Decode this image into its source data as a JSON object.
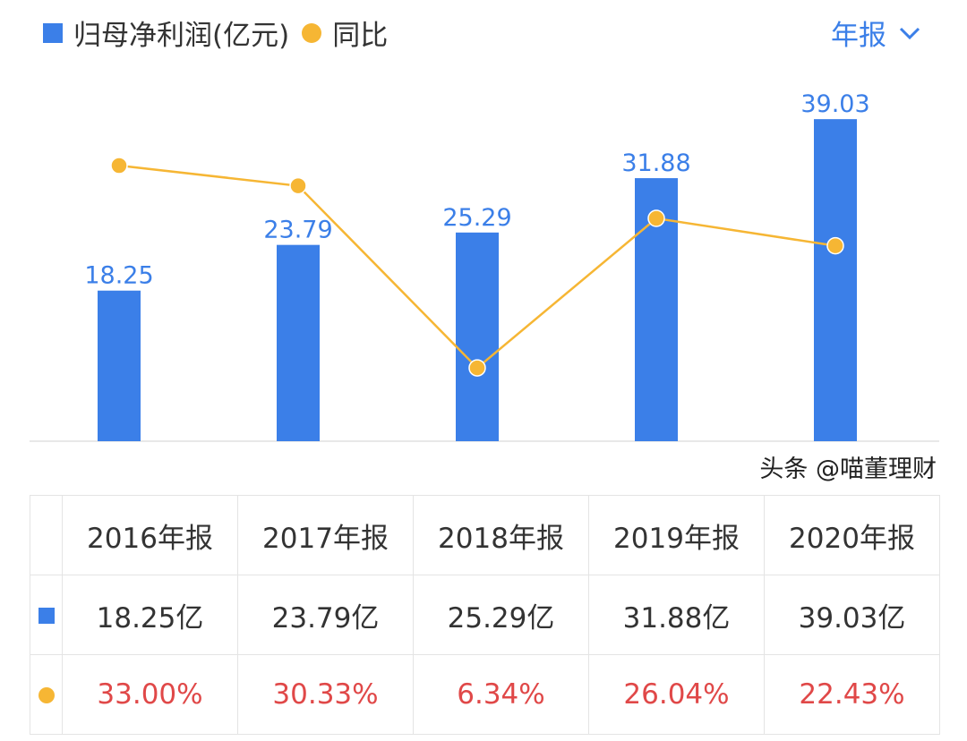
{
  "legend": {
    "bar_label": "归母净利润(亿元)",
    "line_label": "同比"
  },
  "period_select": {
    "value": "年报",
    "icon": "chevron-down-icon"
  },
  "colors": {
    "bar": "#3b7fe8",
    "line": "#f6b634",
    "pct": "#e04848"
  },
  "chart_data": {
    "type": "bar+line",
    "categories": [
      "2016年报",
      "2017年报",
      "2018年报",
      "2019年报",
      "2020年报"
    ],
    "series": [
      {
        "name": "归母净利润(亿元)",
        "type": "bar",
        "values": [
          18.25,
          23.79,
          25.29,
          31.88,
          39.03
        ],
        "labels": [
          "18.25",
          "23.79",
          "25.29",
          "31.88",
          "39.03"
        ]
      },
      {
        "name": "同比",
        "type": "line",
        "values": [
          33.0,
          30.33,
          6.34,
          26.04,
          22.43
        ]
      }
    ]
  },
  "table": {
    "headers": [
      "2016年报",
      "2017年报",
      "2018年报",
      "2019年报",
      "2020年报"
    ],
    "bar_row": [
      "18.25亿",
      "23.79亿",
      "25.29亿",
      "31.88亿",
      "39.03亿"
    ],
    "pct_row": [
      "33.00%",
      "30.33%",
      "6.34%",
      "26.04%",
      "22.43%"
    ]
  },
  "watermark": "头条 @喵董理财"
}
